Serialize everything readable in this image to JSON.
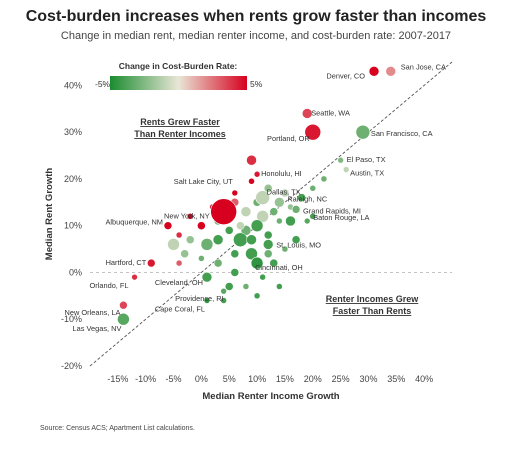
{
  "title": "Cost-burden increases when rents grow faster than incomes",
  "subtitle": "Change in median rent, median renter income, and cost-burden rate: 2007-2017",
  "source": "Source: Census ACS; Apartment List calculations.",
  "colors": {
    "low": "#1a8c2f",
    "mid": "#e9e6d6",
    "high": "#d7001e"
  },
  "chart_data": {
    "type": "scatter",
    "xlabel": "Median Renter Income Growth",
    "ylabel": "Median Rent Growth",
    "xlim": [
      -0.2,
      0.45
    ],
    "ylim": [
      -0.2,
      0.45
    ],
    "x_ticks": [
      "-15%",
      "-10%",
      "-5%",
      "0%",
      "5%",
      "10%",
      "15%",
      "20%",
      "25%",
      "30%",
      "35%",
      "40%"
    ],
    "y_ticks": [
      "-20%",
      "-10%",
      "0%",
      "10%",
      "20%",
      "30%",
      "40%"
    ],
    "diagonal_line": "y = x (dashed)",
    "zero_line": "y = 0 (dashed)",
    "legend": {
      "title": "Change in Cost-Burden Rate:",
      "min_label": "-5%",
      "max_label": "5%",
      "placement": "top-left"
    },
    "region_labels": [
      {
        "lines": [
          "Rents Grew Faster",
          "Than Renter Incomes"
        ]
      },
      {
        "lines": [
          "Renter Incomes Grew",
          "Faster Than Rents"
        ]
      }
    ],
    "points": [
      {
        "name": "San Jose, CA",
        "x": 0.34,
        "y": 0.43,
        "cb": 2.0
      },
      {
        "name": "Denver, CO",
        "x": 0.31,
        "y": 0.43,
        "cb": 5.0
      },
      {
        "name": "Seattle, WA",
        "x": 0.19,
        "y": 0.34,
        "cb": 3.5
      },
      {
        "name": "Portland, OR",
        "x": 0.2,
        "y": 0.3,
        "cb": 4.5
      },
      {
        "name": "San Francisco, CA",
        "x": 0.29,
        "y": 0.3,
        "cb": -3.0
      },
      {
        "name": "El Paso, TX",
        "x": 0.25,
        "y": 0.24,
        "cb": -2.5
      },
      {
        "name": "Austin, TX",
        "x": 0.26,
        "y": 0.22,
        "cb": -1.0
      },
      {
        "name": "Honolulu, HI",
        "x": 0.1,
        "y": 0.21,
        "cb": 4.5
      },
      {
        "name": "Dallas, TX",
        "x": 0.11,
        "y": 0.16,
        "cb": -1.0
      },
      {
        "name": "Salt Lake City, UT",
        "x": 0.06,
        "y": 0.17,
        "cb": 5.0
      },
      {
        "name": "Raleigh, NC",
        "x": 0.14,
        "y": 0.15,
        "cb": -2.0
      },
      {
        "name": "Grand Rapids, MI",
        "x": 0.17,
        "y": 0.135,
        "cb": -3.0
      },
      {
        "name": "New York, NY",
        "x": 0.04,
        "y": 0.13,
        "cb": 5.0
      },
      {
        "name": "Baton Rouge, LA",
        "x": 0.19,
        "y": 0.11,
        "cb": -3.5
      },
      {
        "name": "Albuquerque, NM",
        "x": -0.06,
        "y": 0.1,
        "cb": 5.0
      },
      {
        "name": "St. Louis, MO",
        "x": 0.12,
        "y": 0.06,
        "cb": -4.0
      },
      {
        "name": "Hartford, CT",
        "x": -0.09,
        "y": 0.02,
        "cb": 4.5
      },
      {
        "name": "Cincinnati, OH",
        "x": 0.1,
        "y": 0.02,
        "cb": -4.5
      },
      {
        "name": "Orlando, FL",
        "x": -0.12,
        "y": -0.01,
        "cb": 4.0
      },
      {
        "name": "Cleveland, OH",
        "x": 0.01,
        "y": -0.01,
        "cb": -4.0
      },
      {
        "name": "Providence, RI",
        "x": 0.04,
        "y": -0.04,
        "cb": -3.5
      },
      {
        "name": "Cape Coral, FL",
        "x": 0.01,
        "y": -0.06,
        "cb": -4.5
      },
      {
        "name": "New Orleans, LA",
        "x": -0.14,
        "y": -0.07,
        "cb": 3.5
      },
      {
        "name": "Las Vegas, NV",
        "x": -0.14,
        "y": -0.1,
        "cb": -3.5
      }
    ]
  }
}
